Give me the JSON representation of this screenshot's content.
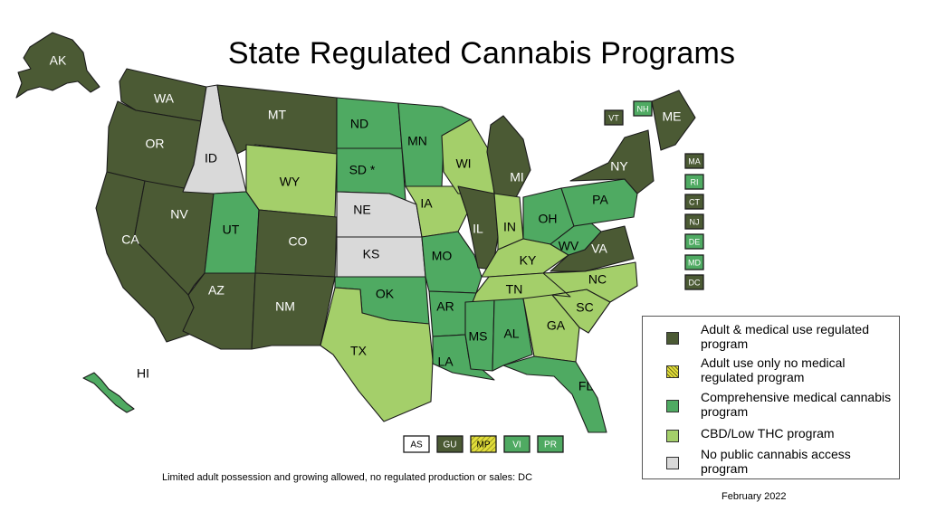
{
  "title": "State Regulated Cannabis Programs",
  "colors": {
    "adult": "#4b5a34",
    "adult_only": "#e2de3a",
    "medical": "#4faa62",
    "cbd": "#a4cf6a",
    "none": "#d9d9d9"
  },
  "states": [
    {
      "abbr": "AK",
      "cat": "adult"
    },
    {
      "abbr": "WA",
      "cat": "adult"
    },
    {
      "abbr": "OR",
      "cat": "adult"
    },
    {
      "abbr": "CA",
      "cat": "adult"
    },
    {
      "abbr": "NV",
      "cat": "adult"
    },
    {
      "abbr": "ID",
      "cat": "none"
    },
    {
      "abbr": "MT",
      "cat": "adult"
    },
    {
      "abbr": "WY",
      "cat": "cbd"
    },
    {
      "abbr": "UT",
      "cat": "medical"
    },
    {
      "abbr": "AZ",
      "cat": "adult"
    },
    {
      "abbr": "CO",
      "cat": "adult"
    },
    {
      "abbr": "NM",
      "cat": "adult"
    },
    {
      "abbr": "ND",
      "cat": "medical"
    },
    {
      "abbr": "SD *",
      "cat": "medical"
    },
    {
      "abbr": "NE",
      "cat": "none"
    },
    {
      "abbr": "KS",
      "cat": "none"
    },
    {
      "abbr": "OK",
      "cat": "medical"
    },
    {
      "abbr": "TX",
      "cat": "cbd"
    },
    {
      "abbr": "MN",
      "cat": "medical"
    },
    {
      "abbr": "IA",
      "cat": "cbd"
    },
    {
      "abbr": "MO",
      "cat": "medical"
    },
    {
      "abbr": "AR",
      "cat": "medical"
    },
    {
      "abbr": "LA",
      "cat": "medical"
    },
    {
      "abbr": "WI",
      "cat": "cbd"
    },
    {
      "abbr": "IL",
      "cat": "adult"
    },
    {
      "abbr": "MI",
      "cat": "adult"
    },
    {
      "abbr": "IN",
      "cat": "cbd"
    },
    {
      "abbr": "OH",
      "cat": "medical"
    },
    {
      "abbr": "KY",
      "cat": "cbd"
    },
    {
      "abbr": "TN",
      "cat": "cbd"
    },
    {
      "abbr": "MS",
      "cat": "medical"
    },
    {
      "abbr": "AL",
      "cat": "medical"
    },
    {
      "abbr": "GA",
      "cat": "cbd"
    },
    {
      "abbr": "FL",
      "cat": "medical"
    },
    {
      "abbr": "SC",
      "cat": "cbd"
    },
    {
      "abbr": "NC",
      "cat": "cbd"
    },
    {
      "abbr": "VA",
      "cat": "adult"
    },
    {
      "abbr": "WV",
      "cat": "medical"
    },
    {
      "abbr": "PA",
      "cat": "medical"
    },
    {
      "abbr": "NY",
      "cat": "adult"
    },
    {
      "abbr": "ME",
      "cat": "adult"
    },
    {
      "abbr": "HI",
      "cat": "medical"
    }
  ],
  "northeast_boxes": [
    {
      "abbr": "VT",
      "cat": "adult"
    },
    {
      "abbr": "NH",
      "cat": "medical"
    },
    {
      "abbr": "MA",
      "cat": "adult"
    },
    {
      "abbr": "RI",
      "cat": "medical"
    },
    {
      "abbr": "CT",
      "cat": "adult"
    },
    {
      "abbr": "NJ",
      "cat": "adult"
    },
    {
      "abbr": "DE",
      "cat": "medical"
    },
    {
      "abbr": "MD",
      "cat": "medical"
    },
    {
      "abbr": "DC",
      "cat": "adult"
    }
  ],
  "territories": [
    {
      "abbr": "AS",
      "cat": "blank"
    },
    {
      "abbr": "GU",
      "cat": "adult"
    },
    {
      "abbr": "MP",
      "cat": "adult_only"
    },
    {
      "abbr": "VI",
      "cat": "medical"
    },
    {
      "abbr": "PR",
      "cat": "medical"
    }
  ],
  "legend": [
    {
      "cat": "adult",
      "label": "Adult & medical use regulated program"
    },
    {
      "cat": "adult_only",
      "label": "Adult use only no medical regulated program"
    },
    {
      "cat": "medical",
      "label": "Comprehensive medical cannabis program"
    },
    {
      "cat": "cbd",
      "label": "CBD/Low THC program"
    },
    {
      "cat": "none",
      "label": "No public cannabis access program"
    }
  ],
  "footnote": "Limited adult possession and growing allowed, no regulated production or sales: DC",
  "date": "February 2022"
}
